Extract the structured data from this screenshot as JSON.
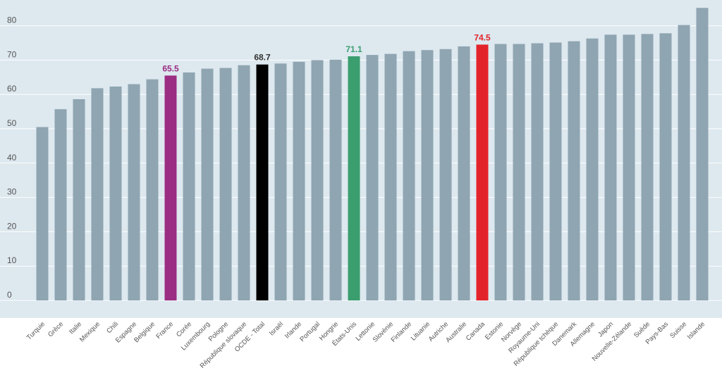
{
  "chart_data": {
    "type": "bar",
    "title": "",
    "xlabel": "",
    "ylabel": "",
    "ylim": [
      0,
      90
    ],
    "yticks": [
      0,
      10,
      20,
      30,
      40,
      50,
      60,
      70,
      80
    ],
    "grid": "horizontal",
    "categories": [
      "Turquie",
      "Grèce",
      "Italie",
      "Mexique",
      "Chili",
      "Espagne",
      "Belgique",
      "France",
      "Corée",
      "Luxembourg",
      "Pologne",
      "République slovaque",
      "OCDE - Total",
      "Israël",
      "Irlande",
      "Portugal",
      "Hongrie",
      "États-Unis",
      "Lettonie",
      "Slovénie",
      "Finlande",
      "Lituanie",
      "Autriche",
      "Australie",
      "Canada",
      "Estonie",
      "Norvège",
      "Royaume-Uni",
      "République tchèque",
      "Danemark",
      "Allemagne",
      "Japon",
      "Nouvelle-Zélande",
      "Suède",
      "Pays-Bas",
      "Suisse",
      "Islande"
    ],
    "values": [
      50.5,
      55.7,
      58.6,
      61.8,
      62.3,
      63.0,
      64.4,
      65.5,
      66.4,
      67.5,
      67.7,
      68.5,
      68.7,
      69.0,
      69.5,
      70.0,
      70.1,
      71.1,
      71.5,
      71.8,
      72.6,
      72.9,
      73.2,
      74.0,
      74.5,
      74.7,
      74.7,
      74.9,
      75.1,
      75.5,
      76.3,
      77.4,
      77.4,
      77.6,
      77.8,
      80.2,
      85.2
    ],
    "highlights": [
      {
        "category": "France",
        "value_label": "65.5",
        "color": "#9b2d82"
      },
      {
        "category": "OCDE - Total",
        "value_label": "68.7",
        "color": "#000000"
      },
      {
        "category": "États-Unis",
        "value_label": "71.1",
        "color": "#3a9e6e"
      },
      {
        "category": "Canada",
        "value_label": "74.5",
        "color": "#e3232a"
      }
    ],
    "colors": {
      "default_bar": "#8fa5b2",
      "plot_background": "#dde8ef",
      "gridline": "#ffffff",
      "tick_text": "#555555",
      "label_default": "#555555",
      "label_bold_highlight": "#333333"
    }
  }
}
